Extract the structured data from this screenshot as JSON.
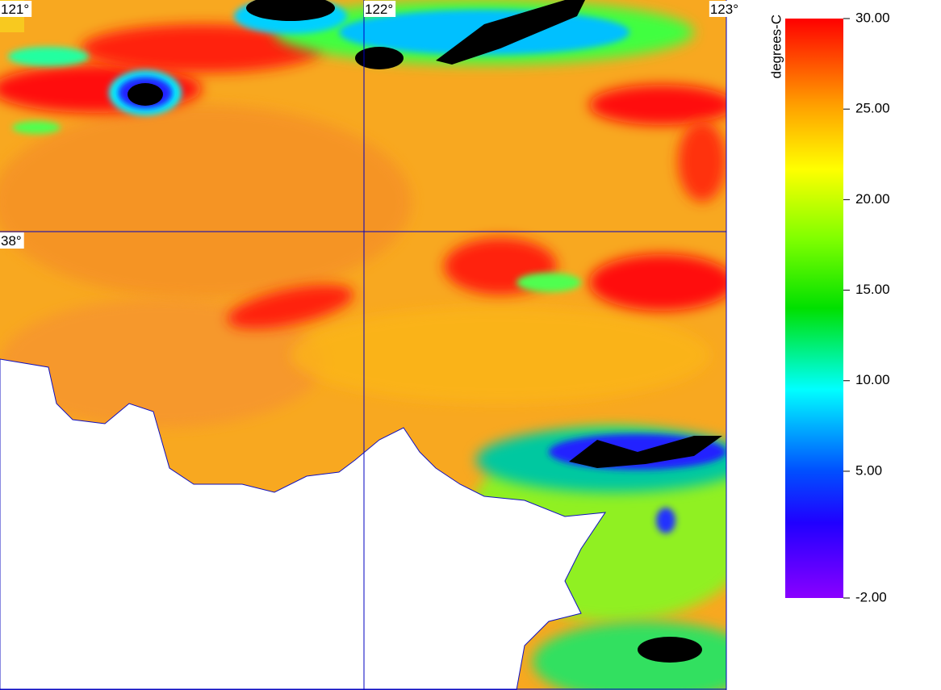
{
  "map": {
    "lon_labels": [
      "121°",
      "122°",
      "123°"
    ],
    "lat_labels": [
      "38°"
    ],
    "colorbar": {
      "unit": "degrees-C",
      "range": [
        -2,
        30
      ],
      "ticks": [
        {
          "value": 30,
          "label": "30.00"
        },
        {
          "value": 25,
          "label": "25.00"
        },
        {
          "value": 20,
          "label": "20.00"
        },
        {
          "value": 15,
          "label": "15.00"
        },
        {
          "value": 10,
          "label": "10.00"
        },
        {
          "value": 5,
          "label": "5.00"
        },
        {
          "value": -2,
          "label": "-2.00"
        }
      ]
    }
  }
}
